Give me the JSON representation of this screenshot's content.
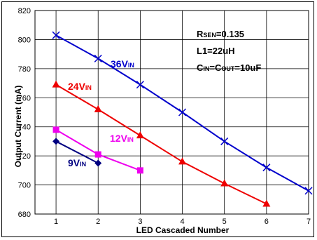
{
  "chart_data": {
    "type": "line",
    "xlabel": "LED Cascaded Number",
    "ylabel": "Output Current (mA)",
    "xlim": [
      1,
      7
    ],
    "ylim": [
      680,
      820
    ],
    "x_ticks": [
      "1",
      "2",
      "3",
      "4",
      "5",
      "6",
      "7"
    ],
    "y_ticks": [
      "680",
      "700",
      "720",
      "740",
      "760",
      "780",
      "800",
      "820"
    ],
    "grid": true,
    "series": [
      {
        "name_main": "36V",
        "name_sub": "IN",
        "color": "#0000cc",
        "marker": "x",
        "x": [
          1,
          2,
          3,
          4,
          5,
          6,
          7
        ],
        "y": [
          803,
          787,
          769,
          750,
          730,
          712,
          696
        ]
      },
      {
        "name_main": "24V",
        "name_sub": "IN",
        "color": "#ee0000",
        "marker": "triangle",
        "x": [
          1,
          2,
          3,
          4,
          5,
          6
        ],
        "y": [
          769,
          752,
          734,
          716,
          701,
          687
        ]
      },
      {
        "name_main": "12V",
        "name_sub": "IN",
        "color": "#ee00ee",
        "marker": "square",
        "x": [
          1,
          2,
          3
        ],
        "y": [
          738,
          721,
          710
        ]
      },
      {
        "name_main": "9V",
        "name_sub": "IN",
        "color": "#000080",
        "marker": "diamond",
        "x": [
          1,
          2
        ],
        "y": [
          730,
          715
        ]
      }
    ],
    "annotations": [
      {
        "main": "R",
        "sub": "SEN",
        "rest": "=0.135"
      },
      {
        "main": "L1=22uH",
        "sub": "",
        "rest": ""
      },
      {
        "main": "C",
        "sub": "IN",
        "rest": "=C",
        "sub2": "OUT",
        "rest2": "=10uF"
      }
    ]
  }
}
